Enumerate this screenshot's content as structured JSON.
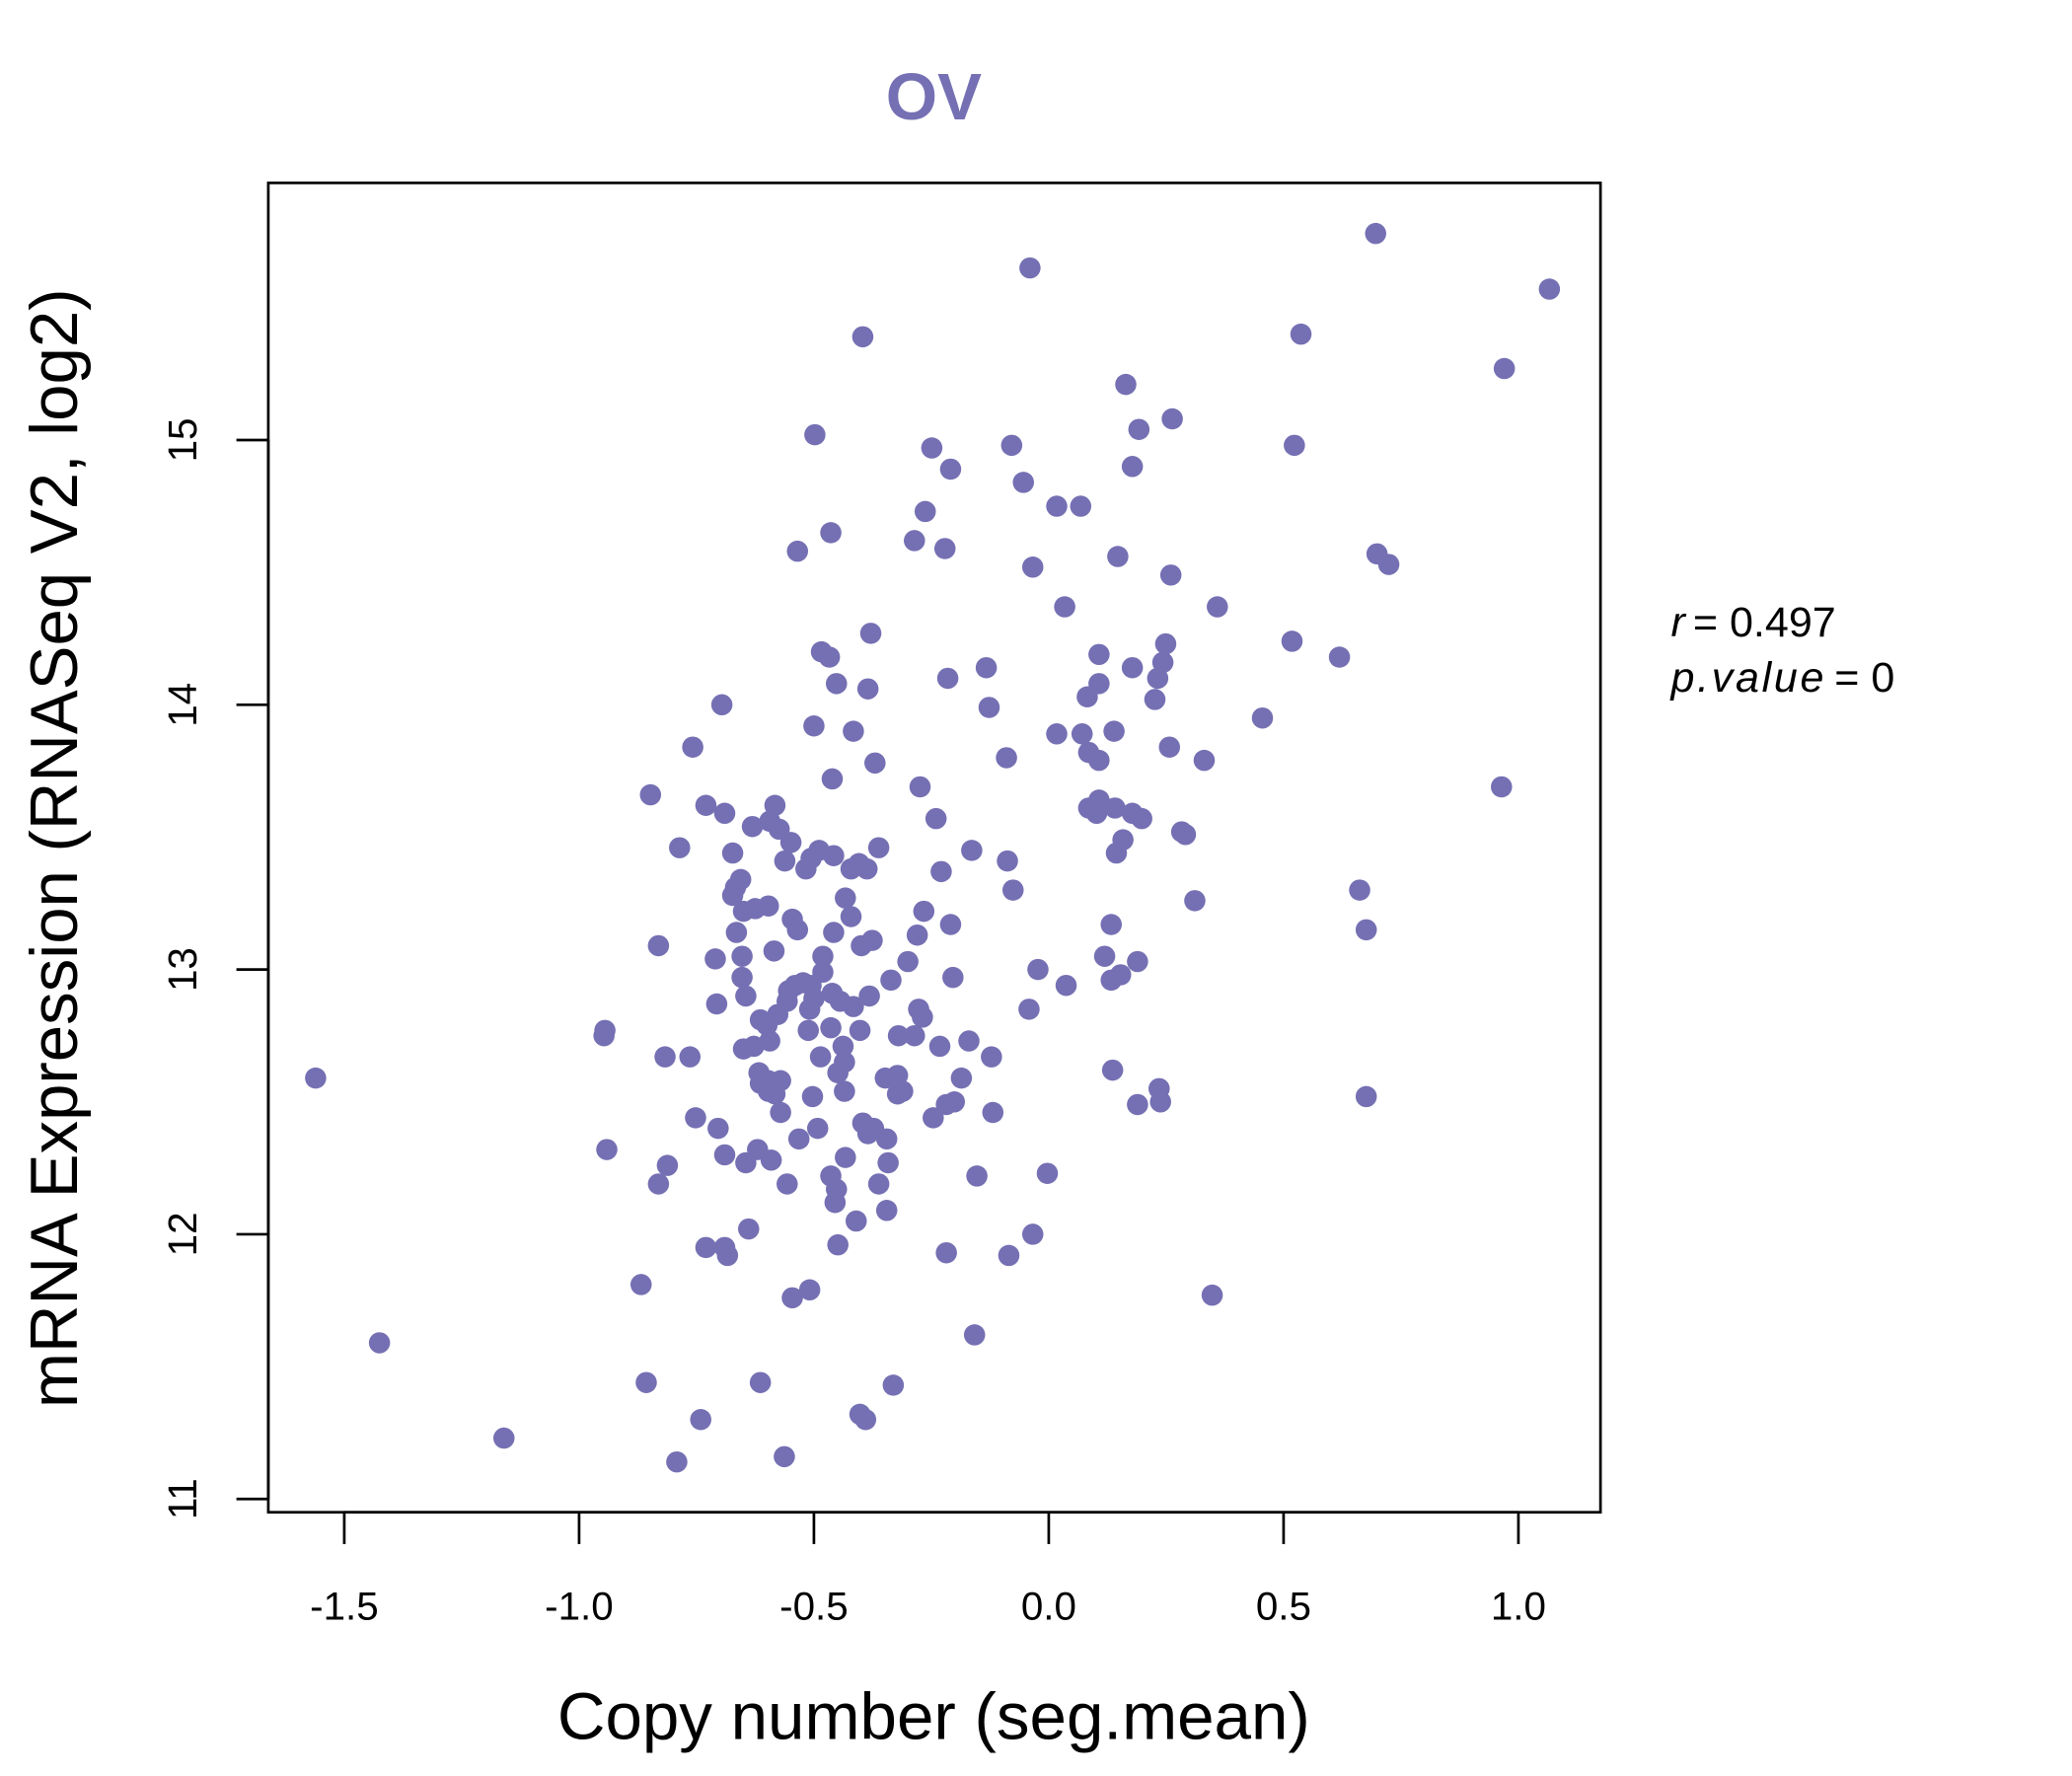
{
  "chart_data": {
    "type": "scatter",
    "title": "OV",
    "xlabel": "Copy number (seg.mean)",
    "ylabel": "mRNA Expression (RNASeq V2, log2)",
    "xlim": [
      -1.66,
      1.18
    ],
    "ylim": [
      10.95,
      16.0
    ],
    "xticks": [
      -1.5,
      -1.0,
      -0.5,
      0.0,
      0.5,
      1.0
    ],
    "xtick_labels": [
      "-1.5",
      "-1.0",
      "-0.5",
      "0.0",
      "0.5",
      "1.0"
    ],
    "yticks": [
      11,
      12,
      13,
      14,
      15
    ],
    "ytick_labels": [
      "11",
      "12",
      "13",
      "14",
      "15"
    ],
    "grid": false,
    "point_color": "#7570B3",
    "annotation": {
      "r_label": "r",
      "r_value": "= 0.497",
      "p_label": "p.value",
      "p_value": "= 0"
    },
    "points": [
      [
        0.696,
        15.78
      ],
      [
        -0.04,
        15.65
      ],
      [
        1.066,
        15.57
      ],
      [
        -0.396,
        15.39
      ],
      [
        0.537,
        15.4
      ],
      [
        0.97,
        15.27
      ],
      [
        0.164,
        15.21
      ],
      [
        -0.498,
        15.02
      ],
      [
        0.263,
        15.08
      ],
      [
        0.192,
        15.04
      ],
      [
        -0.249,
        14.97
      ],
      [
        -0.079,
        14.98
      ],
      [
        0.523,
        14.98
      ],
      [
        0.178,
        14.9
      ],
      [
        -0.209,
        14.89
      ],
      [
        -0.054,
        14.84
      ],
      [
        -0.263,
        14.73
      ],
      [
        0.017,
        14.75
      ],
      [
        0.068,
        14.75
      ],
      [
        -0.464,
        14.65
      ],
      [
        -0.286,
        14.62
      ],
      [
        -0.535,
        14.58
      ],
      [
        -0.221,
        14.59
      ],
      [
        0.147,
        14.56
      ],
      [
        0.699,
        14.57
      ],
      [
        0.724,
        14.53
      ],
      [
        -0.034,
        14.52
      ],
      [
        0.26,
        14.49
      ],
      [
        0.034,
        14.37
      ],
      [
        0.359,
        14.37
      ],
      [
        -0.379,
        14.27
      ],
      [
        0.249,
        14.23
      ],
      [
        0.518,
        14.24
      ],
      [
        -0.484,
        14.2
      ],
      [
        -0.467,
        14.18
      ],
      [
        0.107,
        14.19
      ],
      [
        0.243,
        14.16
      ],
      [
        0.619,
        14.18
      ],
      [
        -0.133,
        14.14
      ],
      [
        0.178,
        14.14
      ],
      [
        -0.215,
        14.1
      ],
      [
        -0.452,
        14.08
      ],
      [
        0.232,
        14.1
      ],
      [
        0.107,
        14.08
      ],
      [
        -0.385,
        14.06
      ],
      [
        0.082,
        14.03
      ],
      [
        0.226,
        14.02
      ],
      [
        -0.696,
        14.0
      ],
      [
        -0.127,
        13.99
      ],
      [
        0.455,
        13.95
      ],
      [
        -0.5,
        13.92
      ],
      [
        -0.416,
        13.9
      ],
      [
        0.017,
        13.89
      ],
      [
        0.071,
        13.89
      ],
      [
        0.139,
        13.9
      ],
      [
        -0.758,
        13.84
      ],
      [
        0.085,
        13.82
      ],
      [
        0.257,
        13.84
      ],
      [
        -0.09,
        13.8
      ],
      [
        0.107,
        13.79
      ],
      [
        -0.37,
        13.78
      ],
      [
        0.331,
        13.79
      ],
      [
        -0.461,
        13.72
      ],
      [
        0.964,
        13.69
      ],
      [
        -0.274,
        13.69
      ],
      [
        -0.848,
        13.66
      ],
      [
        0.107,
        13.64
      ],
      [
        -0.583,
        13.62
      ],
      [
        -0.73,
        13.62
      ],
      [
        0.085,
        13.61
      ],
      [
        -0.69,
        13.59
      ],
      [
        0.102,
        13.59
      ],
      [
        0.141,
        13.61
      ],
      [
        0.178,
        13.59
      ],
      [
        0.198,
        13.57
      ],
      [
        -0.24,
        13.57
      ],
      [
        -0.594,
        13.56
      ],
      [
        -0.631,
        13.54
      ],
      [
        -0.574,
        13.53
      ],
      [
        0.283,
        13.52
      ],
      [
        0.291,
        13.51
      ],
      [
        0.158,
        13.49
      ],
      [
        -0.549,
        13.48
      ],
      [
        -0.786,
        13.46
      ],
      [
        -0.362,
        13.46
      ],
      [
        -0.164,
        13.45
      ],
      [
        -0.489,
        13.45
      ],
      [
        -0.673,
        13.44
      ],
      [
        0.144,
        13.44
      ],
      [
        -0.506,
        13.42
      ],
      [
        -0.458,
        13.43
      ],
      [
        -0.562,
        13.41
      ],
      [
        -0.088,
        13.41
      ],
      [
        -0.404,
        13.4
      ],
      [
        -0.387,
        13.38
      ],
      [
        -0.517,
        13.38
      ],
      [
        -0.421,
        13.38
      ],
      [
        -0.229,
        13.37
      ],
      [
        -0.656,
        13.34
      ],
      [
        -0.667,
        13.31
      ],
      [
        0.662,
        13.3
      ],
      [
        -0.076,
        13.3
      ],
      [
        -0.673,
        13.28
      ],
      [
        -0.433,
        13.27
      ],
      [
        0.311,
        13.26
      ],
      [
        -0.597,
        13.24
      ],
      [
        -0.625,
        13.23
      ],
      [
        -0.65,
        13.22
      ],
      [
        -0.266,
        13.22
      ],
      [
        -0.421,
        13.2
      ],
      [
        -0.546,
        13.19
      ],
      [
        -0.209,
        13.17
      ],
      [
        0.133,
        13.17
      ],
      [
        -0.535,
        13.15
      ],
      [
        0.676,
        13.15
      ],
      [
        -0.458,
        13.14
      ],
      [
        -0.665,
        13.14
      ],
      [
        -0.28,
        13.13
      ],
      [
        -0.376,
        13.11
      ],
      [
        -0.399,
        13.09
      ],
      [
        -0.831,
        13.09
      ],
      [
        -0.585,
        13.07
      ],
      [
        -0.481,
        13.05
      ],
      [
        -0.71,
        13.04
      ],
      [
        -0.653,
        13.05
      ],
      [
        0.119,
        13.05
      ],
      [
        -0.3,
        13.03
      ],
      [
        0.189,
        13.03
      ],
      [
        -0.481,
        12.99
      ],
      [
        0.153,
        12.98
      ],
      [
        -0.023,
        13.0
      ],
      [
        -0.653,
        12.97
      ],
      [
        -0.336,
        12.96
      ],
      [
        0.133,
        12.96
      ],
      [
        -0.204,
        12.97
      ],
      [
        -0.523,
        12.95
      ],
      [
        -0.54,
        12.94
      ],
      [
        -0.506,
        12.94
      ],
      [
        0.037,
        12.94
      ],
      [
        -0.554,
        12.92
      ],
      [
        -0.461,
        12.91
      ],
      [
        -0.645,
        12.9
      ],
      [
        -0.382,
        12.9
      ],
      [
        -0.5,
        12.89
      ],
      [
        -0.557,
        12.88
      ],
      [
        -0.444,
        12.88
      ],
      [
        -0.707,
        12.87
      ],
      [
        -0.416,
        12.86
      ],
      [
        -0.509,
        12.85
      ],
      [
        -0.277,
        12.85
      ],
      [
        -0.042,
        12.85
      ],
      [
        -0.269,
        12.82
      ],
      [
        -0.577,
        12.83
      ],
      [
        -0.614,
        12.81
      ],
      [
        -0.6,
        12.79
      ],
      [
        -0.464,
        12.78
      ],
      [
        -0.402,
        12.77
      ],
      [
        -0.512,
        12.77
      ],
      [
        -0.945,
        12.77
      ],
      [
        -0.947,
        12.75
      ],
      [
        -0.32,
        12.75
      ],
      [
        -0.286,
        12.75
      ],
      [
        -0.594,
        12.73
      ],
      [
        -0.17,
        12.73
      ],
      [
        -0.438,
        12.71
      ],
      [
        -0.232,
        12.71
      ],
      [
        -0.628,
        12.71
      ],
      [
        -0.65,
        12.7
      ],
      [
        -0.486,
        12.67
      ],
      [
        -0.122,
        12.67
      ],
      [
        -0.817,
        12.67
      ],
      [
        -0.764,
        12.67
      ],
      [
        -0.435,
        12.65
      ],
      [
        -0.449,
        12.61
      ],
      [
        -0.617,
        12.61
      ],
      [
        0.136,
        12.62
      ],
      [
        -0.571,
        12.58
      ],
      [
        -0.597,
        12.58
      ],
      [
        -0.348,
        12.59
      ],
      [
        -0.322,
        12.6
      ],
      [
        -0.186,
        12.59
      ],
      [
        -0.614,
        12.57
      ],
      [
        -0.597,
        12.54
      ],
      [
        -0.435,
        12.54
      ],
      [
        -0.311,
        12.54
      ],
      [
        -0.322,
        12.53
      ],
      [
        0.235,
        12.55
      ],
      [
        -0.583,
        12.53
      ],
      [
        -0.503,
        12.52
      ],
      [
        0.676,
        12.52
      ],
      [
        -0.201,
        12.5
      ],
      [
        0.238,
        12.5
      ],
      [
        -0.218,
        12.49
      ],
      [
        0.189,
        12.49
      ],
      [
        -0.571,
        12.46
      ],
      [
        -0.119,
        12.46
      ],
      [
        -0.752,
        12.44
      ],
      [
        -0.246,
        12.44
      ],
      [
        -0.396,
        12.42
      ],
      [
        -0.492,
        12.4
      ],
      [
        -0.704,
        12.4
      ],
      [
        -0.373,
        12.4
      ],
      [
        -0.385,
        12.38
      ],
      [
        -0.532,
        12.36
      ],
      [
        -0.345,
        12.36
      ],
      [
        -0.941,
        12.32
      ],
      [
        -0.62,
        12.32
      ],
      [
        -0.69,
        12.3
      ],
      [
        -0.433,
        12.29
      ],
      [
        -0.591,
        12.28
      ],
      [
        -0.645,
        12.27
      ],
      [
        -0.342,
        12.27
      ],
      [
        -0.812,
        12.26
      ],
      [
        -0.003,
        12.23
      ],
      [
        -0.464,
        12.22
      ],
      [
        -0.153,
        12.22
      ],
      [
        -0.831,
        12.19
      ],
      [
        -0.557,
        12.19
      ],
      [
        -0.362,
        12.19
      ],
      [
        -0.452,
        12.17
      ],
      [
        -0.455,
        12.12
      ],
      [
        -0.345,
        12.09
      ],
      [
        -0.41,
        12.05
      ],
      [
        -0.639,
        12.02
      ],
      [
        -0.034,
        12.0
      ],
      [
        -0.449,
        11.96
      ],
      [
        -0.73,
        11.95
      ],
      [
        -0.69,
        11.95
      ],
      [
        -0.218,
        11.93
      ],
      [
        -0.085,
        11.92
      ],
      [
        -0.684,
        11.92
      ],
      [
        -0.868,
        11.81
      ],
      [
        -0.509,
        11.79
      ],
      [
        -0.546,
        11.76
      ],
      [
        0.348,
        11.77
      ],
      [
        -0.158,
        11.62
      ],
      [
        -1.425,
        11.59
      ],
      [
        -0.857,
        11.44
      ],
      [
        -0.614,
        11.44
      ],
      [
        -0.331,
        11.43
      ],
      [
        -0.402,
        11.32
      ],
      [
        -0.39,
        11.3
      ],
      [
        -0.741,
        11.3
      ],
      [
        -1.16,
        11.23
      ],
      [
        -0.563,
        11.16
      ],
      [
        -0.792,
        11.14
      ],
      [
        -1.561,
        12.59
      ]
    ]
  }
}
